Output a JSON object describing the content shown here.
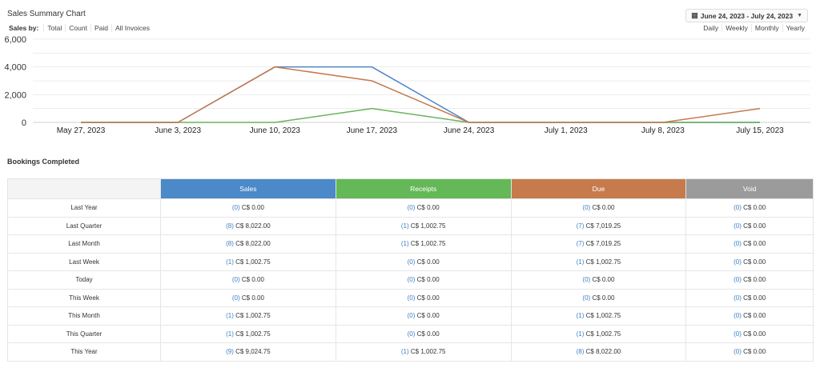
{
  "chart_title": "Sales Summary Chart",
  "sales_by": {
    "label": "Sales by:",
    "options": [
      "Total",
      "Count",
      "Paid",
      "All Invoices"
    ]
  },
  "date_range": {
    "icon": "calendar-icon",
    "value": "June 24, 2023 - July 24, 2023"
  },
  "period_options": [
    "Daily",
    "Weekly",
    "Monthly",
    "Yearly"
  ],
  "chart_data": {
    "type": "line",
    "x": [
      "May 27, 2023",
      "June 3, 2023",
      "June 10, 2023",
      "June 17, 2023",
      "June 24, 2023",
      "July 1, 2023",
      "July 8, 2023",
      "July 15, 2023"
    ],
    "y_ticks": [
      "0",
      "2,000",
      "4,000",
      "6,000"
    ],
    "ylim": [
      0,
      6000
    ],
    "grid": true,
    "series": [
      {
        "color": "#4f87c5",
        "values": [
          0,
          0,
          4000,
          4000,
          0,
          0,
          0,
          0
        ]
      },
      {
        "color": "#6cb25c",
        "values": [
          0,
          0,
          0,
          1000,
          0,
          0,
          0,
          0
        ]
      },
      {
        "color": "#c47a4e",
        "values": [
          0,
          0,
          4000,
          3000,
          0,
          0,
          0,
          1000
        ]
      }
    ]
  },
  "bookings": {
    "title": "Bookings Completed",
    "columns": [
      {
        "label": "Sales",
        "color": "#4b89c8"
      },
      {
        "label": "Receipts",
        "color": "#64b857"
      },
      {
        "label": "Due",
        "color": "#c77b4c"
      },
      {
        "label": "Void",
        "color": "#9b9b9b"
      }
    ],
    "rows": [
      {
        "label": "Last Year",
        "cells": [
          [
            "(0)",
            "C$ 0.00"
          ],
          [
            "(0)",
            "C$ 0.00"
          ],
          [
            "(0)",
            "C$ 0.00"
          ],
          [
            "(0)",
            "C$ 0.00"
          ]
        ]
      },
      {
        "label": "Last Quarter",
        "cells": [
          [
            "(8)",
            "C$ 8,022.00"
          ],
          [
            "(1)",
            "C$ 1,002.75"
          ],
          [
            "(7)",
            "C$ 7,019.25"
          ],
          [
            "(0)",
            "C$ 0.00"
          ]
        ]
      },
      {
        "label": "Last Month",
        "cells": [
          [
            "(8)",
            "C$ 8,022.00"
          ],
          [
            "(1)",
            "C$ 1,002.75"
          ],
          [
            "(7)",
            "C$ 7,019.25"
          ],
          [
            "(0)",
            "C$ 0.00"
          ]
        ]
      },
      {
        "label": "Last Week",
        "cells": [
          [
            "(1)",
            "C$ 1,002.75"
          ],
          [
            "(0)",
            "C$ 0.00"
          ],
          [
            "(1)",
            "C$ 1,002.75"
          ],
          [
            "(0)",
            "C$ 0.00"
          ]
        ]
      },
      {
        "label": "Today",
        "cells": [
          [
            "(0)",
            "C$ 0.00"
          ],
          [
            "(0)",
            "C$ 0.00"
          ],
          [
            "(0)",
            "C$ 0.00"
          ],
          [
            "(0)",
            "C$ 0.00"
          ]
        ]
      },
      {
        "label": "This Week",
        "cells": [
          [
            "(0)",
            "C$ 0.00"
          ],
          [
            "(0)",
            "C$ 0.00"
          ],
          [
            "(0)",
            "C$ 0.00"
          ],
          [
            "(0)",
            "C$ 0.00"
          ]
        ]
      },
      {
        "label": "This Month",
        "cells": [
          [
            "(1)",
            "C$ 1,002.75"
          ],
          [
            "(0)",
            "C$ 0.00"
          ],
          [
            "(1)",
            "C$ 1,002.75"
          ],
          [
            "(0)",
            "C$ 0.00"
          ]
        ]
      },
      {
        "label": "This Quarter",
        "cells": [
          [
            "(1)",
            "C$ 1,002.75"
          ],
          [
            "(0)",
            "C$ 0.00"
          ],
          [
            "(1)",
            "C$ 1,002.75"
          ],
          [
            "(0)",
            "C$ 0.00"
          ]
        ]
      },
      {
        "label": "This Year",
        "cells": [
          [
            "(9)",
            "C$ 9,024.75"
          ],
          [
            "(1)",
            "C$ 1,002.75"
          ],
          [
            "(8)",
            "C$ 8,022.00"
          ],
          [
            "(0)",
            "C$ 0.00"
          ]
        ]
      }
    ]
  }
}
